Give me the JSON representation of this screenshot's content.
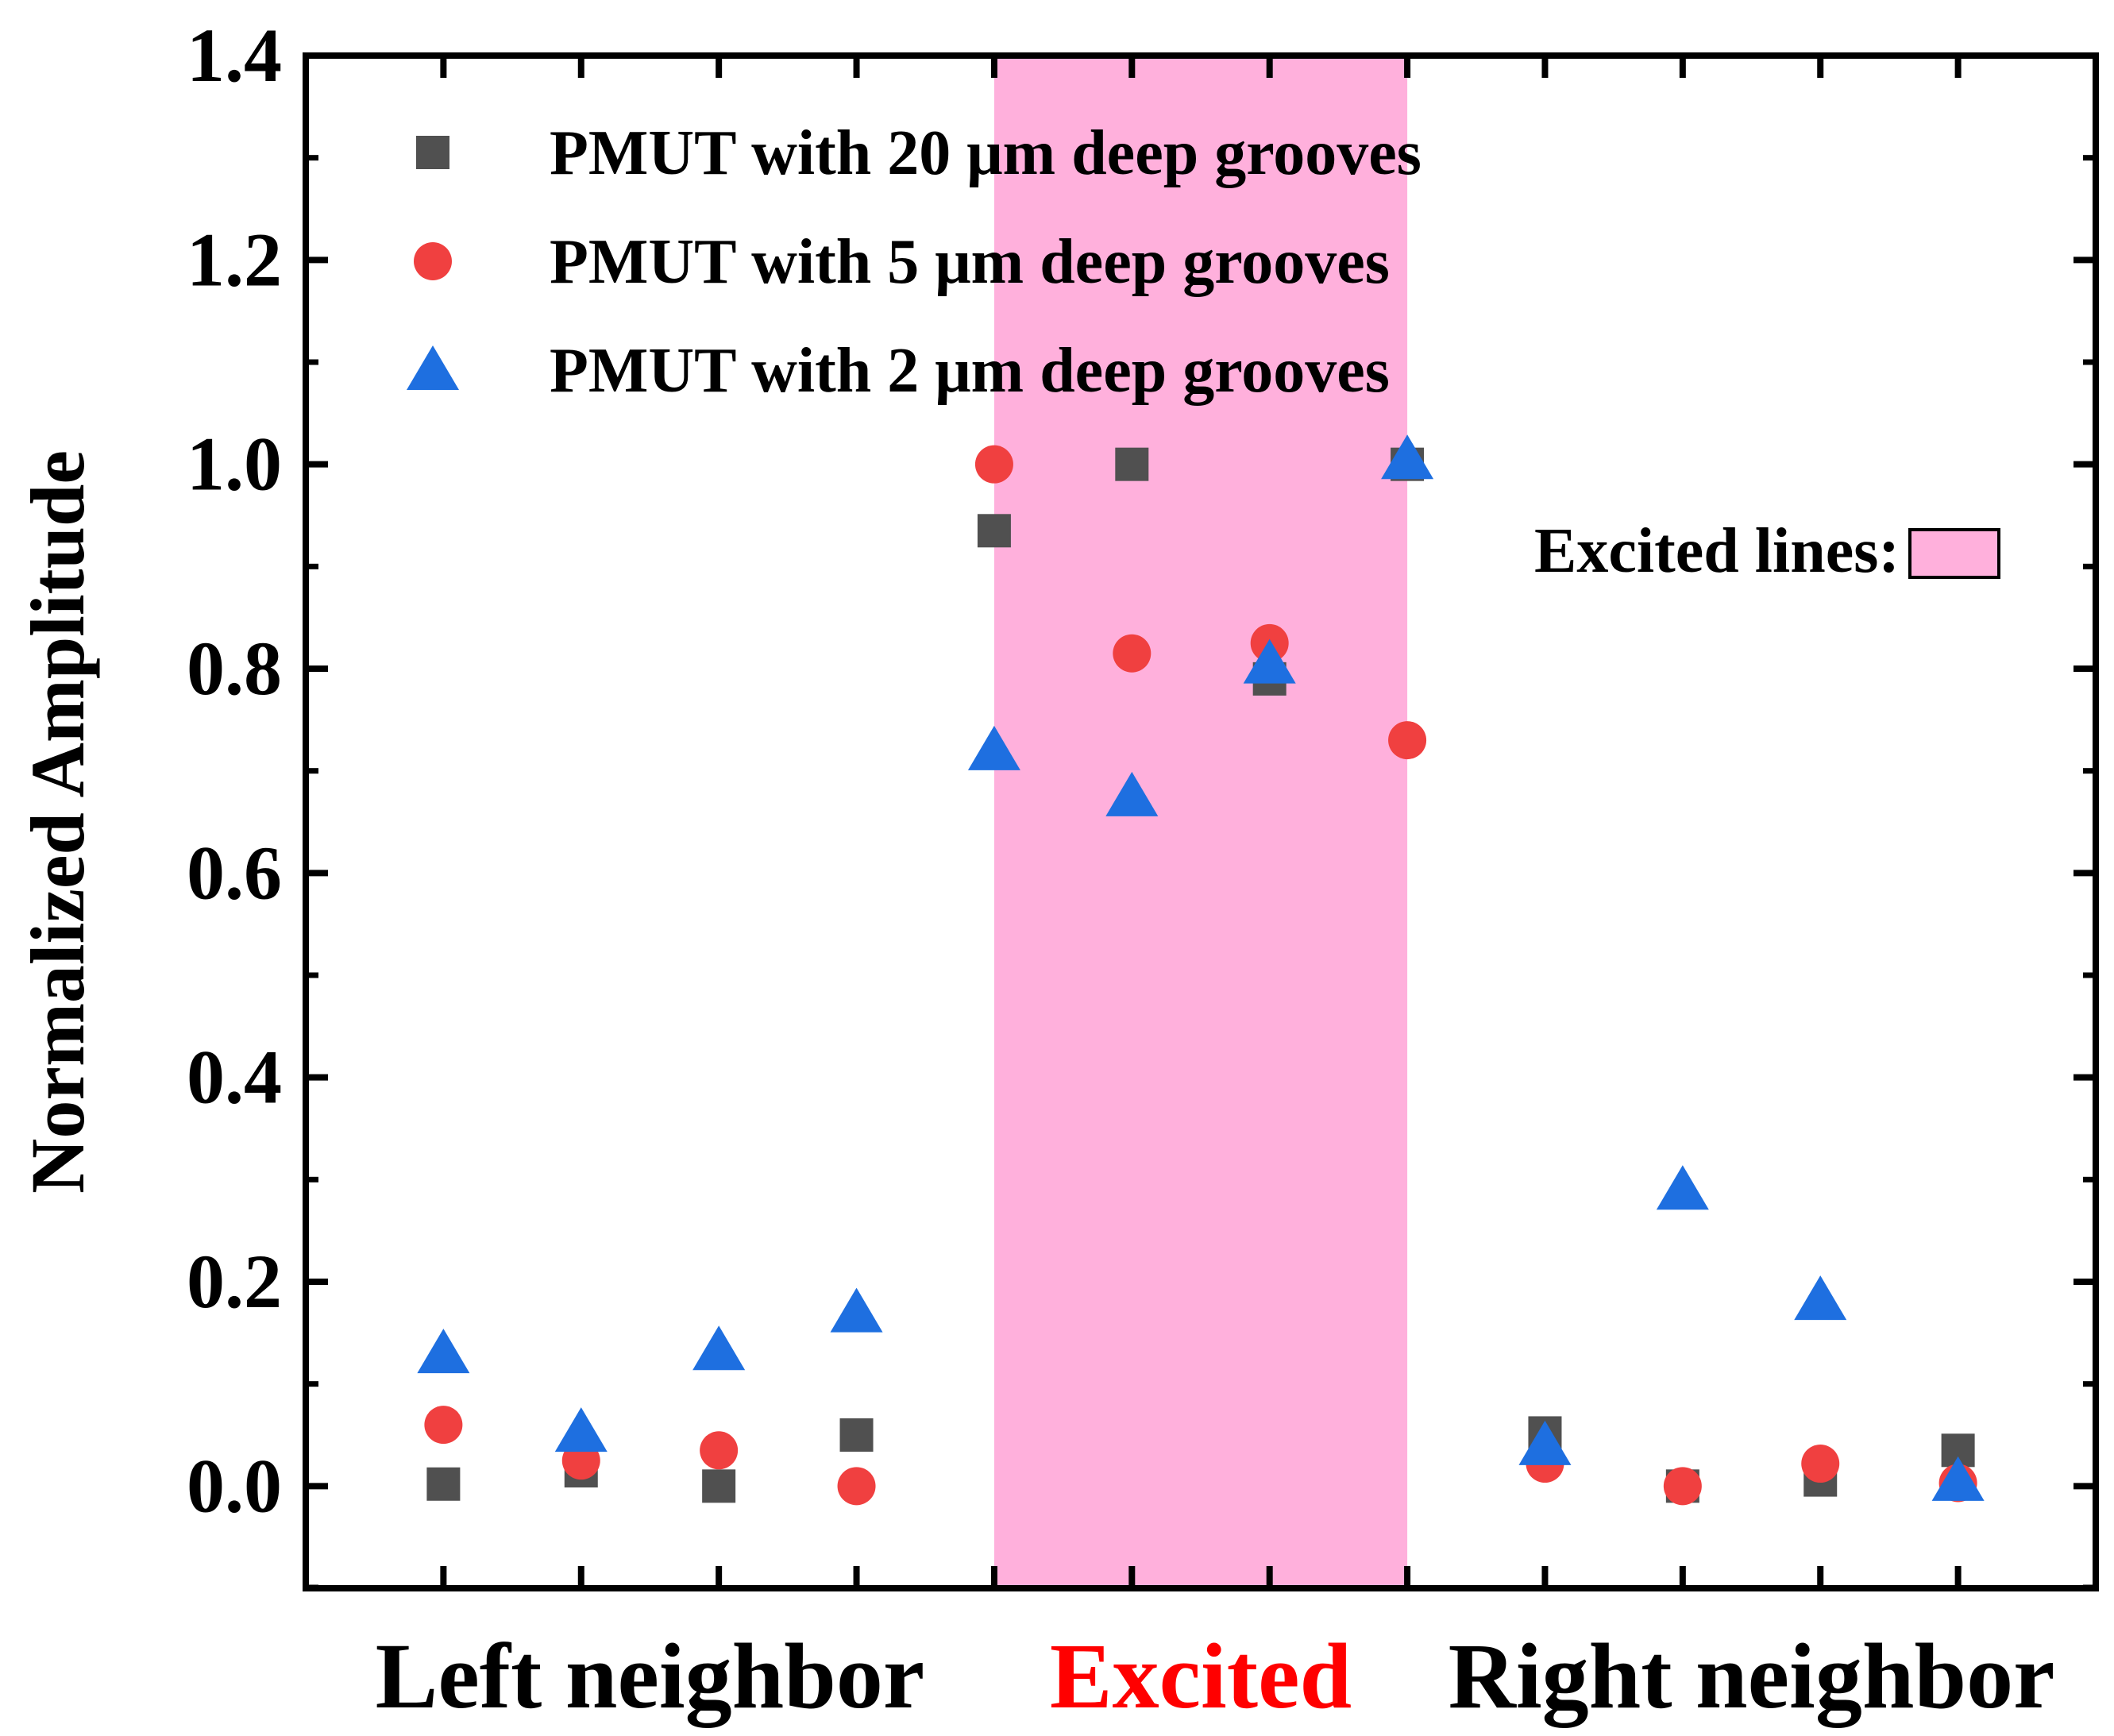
{
  "chart_data": {
    "type": "scatter",
    "title": "",
    "ylabel": "Normalized Amplitude",
    "xlabel": "",
    "ylim": [
      -0.1,
      1.4
    ],
    "y_ticks": [
      "0.0",
      "0.2",
      "0.4",
      "0.6",
      "0.8",
      "1.0",
      "1.2",
      "1.4"
    ],
    "y_tick_values": [
      0.0,
      0.2,
      0.4,
      0.6,
      0.8,
      1.0,
      1.2,
      1.4
    ],
    "x": [
      1,
      2,
      3,
      4,
      5,
      6,
      7,
      8,
      9,
      10,
      11,
      12
    ],
    "xlim": [
      0,
      13
    ],
    "highlight_region": {
      "x_start": 5,
      "x_end": 8,
      "color": "#ffb0dc"
    },
    "groups": [
      {
        "label": "Left neighbor",
        "x_center": 2.5,
        "color": "#000000"
      },
      {
        "label": "Excited",
        "x_center": 6.5,
        "color": "#ff0000"
      },
      {
        "label": "Right neighbor",
        "x_center": 10.5,
        "color": "#000000"
      }
    ],
    "series": [
      {
        "name": "PMUT with 20 μm deep grooves",
        "marker": "square",
        "color": "#505050",
        "values": [
          0.002,
          0.015,
          0.0,
          0.05,
          0.935,
          1.0,
          0.79,
          1.0,
          0.052,
          0.0,
          0.006,
          0.035
        ]
      },
      {
        "name": "PMUT with 5 μm deep grooves",
        "marker": "circle",
        "color": "#f04040",
        "values": [
          0.06,
          0.025,
          0.035,
          0.0,
          1.0,
          0.815,
          0.825,
          0.73,
          0.022,
          0.0,
          0.022,
          0.003
        ]
      },
      {
        "name": "PMUT with 2 μm deep grooves",
        "marker": "triangle",
        "color": "#1e6fe0",
        "values": [
          0.13,
          0.053,
          0.133,
          0.17,
          0.72,
          0.675,
          0.805,
          1.005,
          0.04,
          0.29,
          0.182,
          0.005
        ]
      }
    ],
    "legend_position": "top-left",
    "annotation": {
      "text": "Excited lines:",
      "swatch_color": "#ffb0dc"
    }
  }
}
